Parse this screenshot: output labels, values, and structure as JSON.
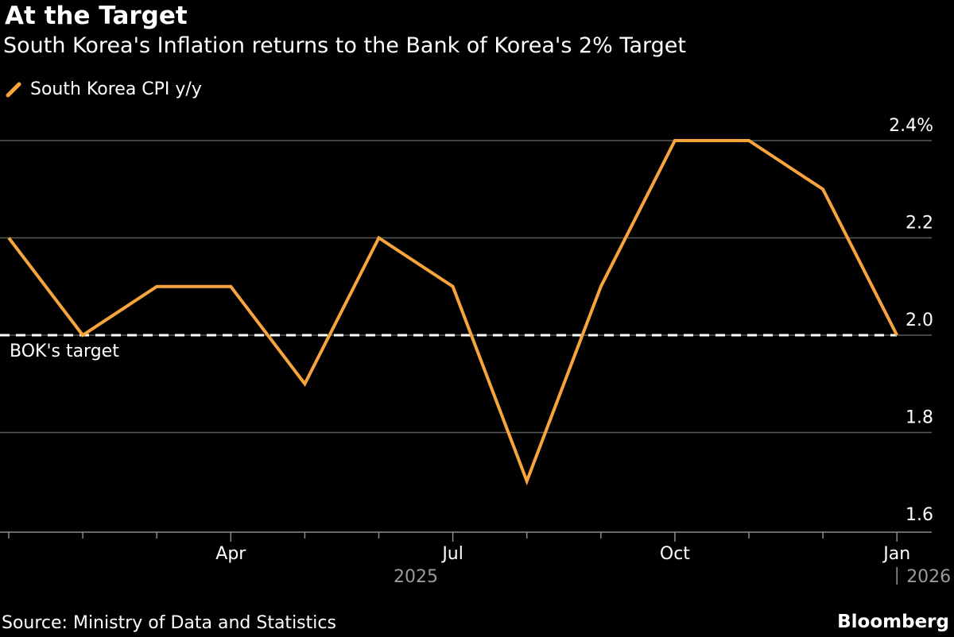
{
  "header": {
    "title": "At the Target",
    "subtitle": "South Korea's Inflation returns to the Bank of Korea's 2% Target"
  },
  "footer": {
    "source": "Source: Ministry of Data and Statistics",
    "brand": "Bloomberg"
  },
  "chart_data": {
    "type": "line",
    "x": [
      "2025-01",
      "2025-02",
      "2025-03",
      "2025-04",
      "2025-05",
      "2025-06",
      "2025-07",
      "2025-08",
      "2025-09",
      "2025-10",
      "2025-11",
      "2025-12",
      "2026-01"
    ],
    "series": [
      {
        "name": "South Korea CPI y/y",
        "color": "#f7a43c",
        "values": [
          2.2,
          2.0,
          2.1,
          2.1,
          1.9,
          2.2,
          2.1,
          1.7,
          2.1,
          2.4,
          2.4,
          2.3,
          2.0
        ]
      }
    ],
    "reference_line": {
      "value": 2.0,
      "label": "BOK's target",
      "style": "dashed",
      "color": "#ffffff"
    },
    "ylim": [
      1.6,
      2.4
    ],
    "yticks": [
      {
        "value": 1.6,
        "label": "1.6"
      },
      {
        "value": 1.8,
        "label": "1.8"
      },
      {
        "value": 2.0,
        "label": "2.0"
      },
      {
        "value": 2.2,
        "label": "2.2"
      },
      {
        "value": 2.4,
        "label": "2.4%"
      }
    ],
    "xticks": [
      {
        "at": "2025-04",
        "label": "Apr"
      },
      {
        "at": "2025-07",
        "label": "Jul"
      },
      {
        "at": "2025-10",
        "label": "Oct"
      },
      {
        "at": "2026-01",
        "label": "Jan"
      }
    ],
    "year_labels": [
      {
        "label": "2025"
      },
      {
        "label": "2026"
      }
    ],
    "grid": true,
    "legend_position": "top-left"
  }
}
